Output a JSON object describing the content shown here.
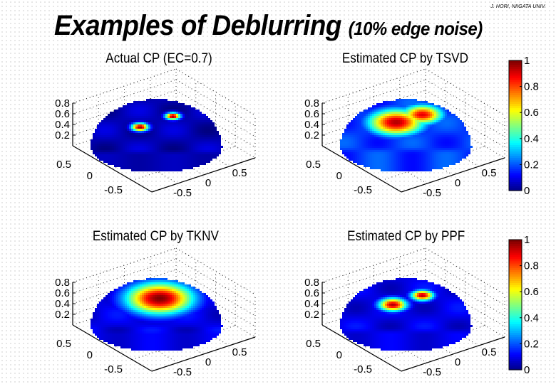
{
  "header": {
    "credit": "J. HORI, NIIGATA UNIV.",
    "title_main": "Examples of Deblurring",
    "title_sub": "(10% edge noise)"
  },
  "colormap": {
    "name": "jet",
    "stops": [
      "#00008f",
      "#0000ff",
      "#00ffff",
      "#ffff00",
      "#ff0000",
      "#800000"
    ]
  },
  "chart_data": [
    {
      "type": "heatmap",
      "title": "Actual CP (EC=0.7)",
      "surface": "hemisphere",
      "zlim": [
        0,
        0.8
      ],
      "z_ticks": [
        "0.8",
        "0.6",
        "0.4",
        "0.2"
      ],
      "x_ticks": [
        "0.5",
        "0",
        "-0.5"
      ],
      "y_ticks": [
        "-0.5",
        "0",
        "0.5"
      ],
      "clim": [
        0,
        1
      ],
      "hotspots": [
        {
          "x": -0.25,
          "y": 0.1,
          "value": 1.0,
          "spread": 0.09
        },
        {
          "x": 0.25,
          "y": 0.45,
          "value": 1.0,
          "spread": 0.08
        }
      ],
      "background_value": 0.05
    },
    {
      "type": "heatmap",
      "title": "Estimated CP by TSVD",
      "surface": "hemisphere",
      "zlim": [
        0,
        0.8
      ],
      "z_ticks": [
        "0.8",
        "0.6",
        "0.4",
        "0.2"
      ],
      "x_ticks": [
        "0.5",
        "0",
        "-0.5"
      ],
      "y_ticks": [
        "-0.5",
        "0",
        "0.5"
      ],
      "clim": [
        0,
        1
      ],
      "hotspots": [
        {
          "x": -0.15,
          "y": 0.25,
          "value": 0.95,
          "spread": 0.3
        },
        {
          "x": 0.25,
          "y": 0.5,
          "value": 0.9,
          "spread": 0.22
        }
      ],
      "background_value": 0.18,
      "colorbar": {
        "ticks": [
          "1",
          "0.8",
          "0.6",
          "0.4",
          "0.2",
          "0"
        ]
      }
    },
    {
      "type": "heatmap",
      "title": "Estimated CP by TKNV",
      "surface": "hemisphere",
      "zlim": [
        0,
        0.8
      ],
      "z_ticks": [
        "0.8",
        "0.6",
        "0.4",
        "0.2"
      ],
      "x_ticks": [
        "0.5",
        "0",
        "-0.5"
      ],
      "y_ticks": [
        "-0.5",
        "0",
        "0.5"
      ],
      "clim": [
        0,
        1
      ],
      "hotspots": [
        {
          "x": 0.05,
          "y": 0.35,
          "value": 1.0,
          "spread": 0.36
        }
      ],
      "background_value": 0.1
    },
    {
      "type": "heatmap",
      "title": "Estimated CP by PPF",
      "surface": "hemisphere",
      "zlim": [
        0,
        0.8
      ],
      "z_ticks": [
        "0.8",
        "0.6",
        "0.4",
        "0.2"
      ],
      "x_ticks": [
        "0.5",
        "0",
        "-0.5"
      ],
      "y_ticks": [
        "-0.5",
        "0",
        "0.5"
      ],
      "clim": [
        0,
        1
      ],
      "hotspots": [
        {
          "x": -0.2,
          "y": 0.15,
          "value": 0.95,
          "spread": 0.15
        },
        {
          "x": 0.25,
          "y": 0.45,
          "value": 0.95,
          "spread": 0.12
        }
      ],
      "background_value": 0.1,
      "colorbar": {
        "ticks": [
          "1",
          "0.8",
          "0.6",
          "0.4",
          "0.2",
          "0"
        ]
      }
    }
  ]
}
